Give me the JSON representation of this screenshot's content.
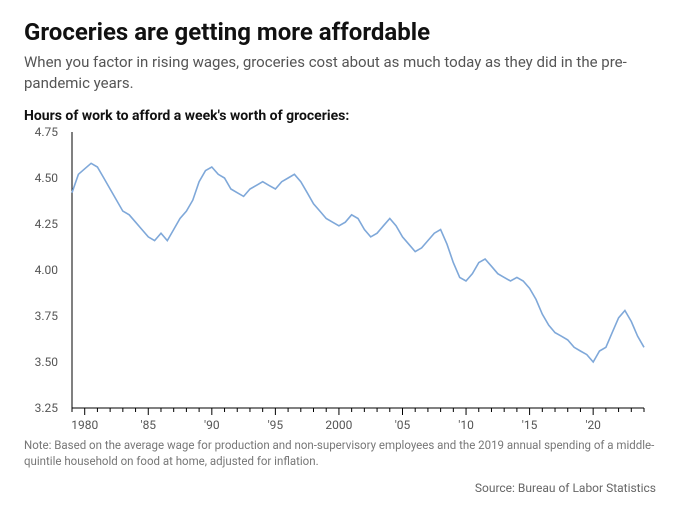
{
  "title": "Groceries are getting more affordable",
  "subtitle": "When you factor in rising wages, groceries cost about as much today as they did in the pre-pandemic years.",
  "axis_title": "Hours of work to afford a week's worth of groceries:",
  "note": "Note: Based on the average wage for production and non-supervisory employees and the 2019 annual spending of a middle-quintile household on food at home, adjusted for inflation.",
  "source": "Source: Bureau of Labor Statistics",
  "chart": {
    "type": "line",
    "background_color": "#ffffff",
    "line_color": "#7fa8d9",
    "axis_color": "#000000",
    "text_color": "#555555",
    "title_fontsize": 24,
    "subtitle_fontsize": 15,
    "axis_title_fontsize": 14,
    "tick_fontsize": 12,
    "note_fontsize": 11.5,
    "line_width": 1.6,
    "xlim": [
      1979,
      2024
    ],
    "ylim": [
      3.25,
      4.75
    ],
    "yticks": [
      3.25,
      3.5,
      3.75,
      4.0,
      4.25,
      4.5,
      4.75
    ],
    "ytick_labels": [
      "3.25",
      "3.50",
      "3.75",
      "4.00",
      "4.25",
      "4.50",
      "4.75"
    ],
    "xticks_major": [
      1980,
      1985,
      1990,
      1995,
      2000,
      2005,
      2010,
      2015,
      2020
    ],
    "xtick_labels": [
      "1980",
      "'85",
      "'90",
      "'95",
      "2000",
      "'05",
      "'10",
      "'15",
      "'20"
    ],
    "xticks_minor_step": 1,
    "series": [
      {
        "x": 1979.0,
        "y": 4.42
      },
      {
        "x": 1979.5,
        "y": 4.52
      },
      {
        "x": 1980.0,
        "y": 4.55
      },
      {
        "x": 1980.5,
        "y": 4.58
      },
      {
        "x": 1981.0,
        "y": 4.56
      },
      {
        "x": 1981.5,
        "y": 4.5
      },
      {
        "x": 1982.0,
        "y": 4.44
      },
      {
        "x": 1982.5,
        "y": 4.38
      },
      {
        "x": 1983.0,
        "y": 4.32
      },
      {
        "x": 1983.5,
        "y": 4.3
      },
      {
        "x": 1984.0,
        "y": 4.26
      },
      {
        "x": 1984.5,
        "y": 4.22
      },
      {
        "x": 1985.0,
        "y": 4.18
      },
      {
        "x": 1985.5,
        "y": 4.16
      },
      {
        "x": 1986.0,
        "y": 4.2
      },
      {
        "x": 1986.5,
        "y": 4.16
      },
      {
        "x": 1987.0,
        "y": 4.22
      },
      {
        "x": 1987.5,
        "y": 4.28
      },
      {
        "x": 1988.0,
        "y": 4.32
      },
      {
        "x": 1988.5,
        "y": 4.38
      },
      {
        "x": 1989.0,
        "y": 4.48
      },
      {
        "x": 1989.5,
        "y": 4.54
      },
      {
        "x": 1990.0,
        "y": 4.56
      },
      {
        "x": 1990.5,
        "y": 4.52
      },
      {
        "x": 1991.0,
        "y": 4.5
      },
      {
        "x": 1991.5,
        "y": 4.44
      },
      {
        "x": 1992.0,
        "y": 4.42
      },
      {
        "x": 1992.5,
        "y": 4.4
      },
      {
        "x": 1993.0,
        "y": 4.44
      },
      {
        "x": 1993.5,
        "y": 4.46
      },
      {
        "x": 1994.0,
        "y": 4.48
      },
      {
        "x": 1994.5,
        "y": 4.46
      },
      {
        "x": 1995.0,
        "y": 4.44
      },
      {
        "x": 1995.5,
        "y": 4.48
      },
      {
        "x": 1996.0,
        "y": 4.5
      },
      {
        "x": 1996.5,
        "y": 4.52
      },
      {
        "x": 1997.0,
        "y": 4.48
      },
      {
        "x": 1997.5,
        "y": 4.42
      },
      {
        "x": 1998.0,
        "y": 4.36
      },
      {
        "x": 1998.5,
        "y": 4.32
      },
      {
        "x": 1999.0,
        "y": 4.28
      },
      {
        "x": 1999.5,
        "y": 4.26
      },
      {
        "x": 2000.0,
        "y": 4.24
      },
      {
        "x": 2000.5,
        "y": 4.26
      },
      {
        "x": 2001.0,
        "y": 4.3
      },
      {
        "x": 2001.5,
        "y": 4.28
      },
      {
        "x": 2002.0,
        "y": 4.22
      },
      {
        "x": 2002.5,
        "y": 4.18
      },
      {
        "x": 2003.0,
        "y": 4.2
      },
      {
        "x": 2003.5,
        "y": 4.24
      },
      {
        "x": 2004.0,
        "y": 4.28
      },
      {
        "x": 2004.5,
        "y": 4.24
      },
      {
        "x": 2005.0,
        "y": 4.18
      },
      {
        "x": 2005.5,
        "y": 4.14
      },
      {
        "x": 2006.0,
        "y": 4.1
      },
      {
        "x": 2006.5,
        "y": 4.12
      },
      {
        "x": 2007.0,
        "y": 4.16
      },
      {
        "x": 2007.5,
        "y": 4.2
      },
      {
        "x": 2008.0,
        "y": 4.22
      },
      {
        "x": 2008.5,
        "y": 4.14
      },
      {
        "x": 2009.0,
        "y": 4.04
      },
      {
        "x": 2009.5,
        "y": 3.96
      },
      {
        "x": 2010.0,
        "y": 3.94
      },
      {
        "x": 2010.5,
        "y": 3.98
      },
      {
        "x": 2011.0,
        "y": 4.04
      },
      {
        "x": 2011.5,
        "y": 4.06
      },
      {
        "x": 2012.0,
        "y": 4.02
      },
      {
        "x": 2012.5,
        "y": 3.98
      },
      {
        "x": 2013.0,
        "y": 3.96
      },
      {
        "x": 2013.5,
        "y": 3.94
      },
      {
        "x": 2014.0,
        "y": 3.96
      },
      {
        "x": 2014.5,
        "y": 3.94
      },
      {
        "x": 2015.0,
        "y": 3.9
      },
      {
        "x": 2015.5,
        "y": 3.84
      },
      {
        "x": 2016.0,
        "y": 3.76
      },
      {
        "x": 2016.5,
        "y": 3.7
      },
      {
        "x": 2017.0,
        "y": 3.66
      },
      {
        "x": 2017.5,
        "y": 3.64
      },
      {
        "x": 2018.0,
        "y": 3.62
      },
      {
        "x": 2018.5,
        "y": 3.58
      },
      {
        "x": 2019.0,
        "y": 3.56
      },
      {
        "x": 2019.5,
        "y": 3.54
      },
      {
        "x": 2020.0,
        "y": 3.5
      },
      {
        "x": 2020.5,
        "y": 3.56
      },
      {
        "x": 2021.0,
        "y": 3.58
      },
      {
        "x": 2021.5,
        "y": 3.66
      },
      {
        "x": 2022.0,
        "y": 3.74
      },
      {
        "x": 2022.5,
        "y": 3.78
      },
      {
        "x": 2023.0,
        "y": 3.72
      },
      {
        "x": 2023.5,
        "y": 3.64
      },
      {
        "x": 2024.0,
        "y": 3.58
      }
    ]
  }
}
